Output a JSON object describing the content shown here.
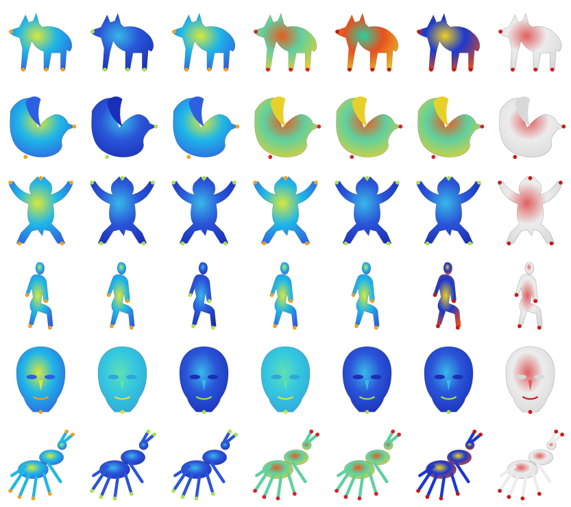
{
  "grid": {
    "rows": [
      {
        "shape": "wolf",
        "colormaps": [
          "jet-mixed-cyan",
          "jet-mostly-blue",
          "jet-mixed-cyan",
          "jet-yellow-red",
          "jet-red-heavy",
          "jet-blue-red-extremes",
          "red-on-white"
        ]
      },
      {
        "shape": "duck",
        "colormaps": [
          "jet-mixed-cyan",
          "jet-mostly-blue",
          "jet-mixed-cyan",
          "jet-yellow-red",
          "jet-yellow-red",
          "jet-yellow-red",
          "red-on-white"
        ]
      },
      {
        "shape": "bear",
        "colormaps": [
          "jet-mixed-cyan",
          "jet-mostly-blue",
          "jet-mostly-blue",
          "jet-mixed-cyan",
          "jet-mostly-blue",
          "jet-mostly-blue",
          "red-on-white"
        ]
      },
      {
        "shape": "seated-figure",
        "colormaps": [
          "jet-mixed-cyan",
          "jet-mixed-cyan",
          "jet-mostly-blue",
          "jet-mixed-cyan",
          "jet-mixed-cyan",
          "jet-blue-red-extremes",
          "red-on-white"
        ]
      },
      {
        "shape": "head",
        "colormaps": [
          "jet-mixed-cyan",
          "jet-cyan",
          "jet-mostly-blue",
          "jet-cyan",
          "jet-mostly-blue",
          "jet-mostly-blue",
          "red-on-white"
        ]
      },
      {
        "shape": "ant",
        "colormaps": [
          "jet-mixed-cyan",
          "jet-mostly-blue",
          "jet-mostly-blue",
          "jet-yellow-red",
          "jet-yellow-red",
          "jet-blue-red-extremes",
          "red-on-white"
        ]
      }
    ],
    "palettes": {
      "jet-mixed-cyan": {
        "base": "#1fb6e8",
        "patch1": "#2e5fe0",
        "patch2": "#d8e83a",
        "accent": "#f0a020"
      },
      "jet-mostly-blue": {
        "base": "#2a55d8",
        "patch1": "#1a2fb8",
        "patch2": "#38b8e8",
        "accent": "#a8e050"
      },
      "jet-cyan": {
        "base": "#35c8e0",
        "patch1": "#2fa6d8",
        "patch2": "#5fe0b0",
        "accent": "#e0e040"
      },
      "jet-yellow-red": {
        "base": "#5fd0a0",
        "patch1": "#e8d02a",
        "patch2": "#e85a20",
        "accent": "#d8202a"
      },
      "jet-red-heavy": {
        "base": "#e85020",
        "patch1": "#e8c020",
        "patch2": "#2ad0a0",
        "accent": "#c01818"
      },
      "jet-blue-red-extremes": {
        "base": "#1a38d0",
        "patch1": "#e84a1a",
        "patch2": "#f0d020",
        "accent": "#c81810"
      },
      "red-on-white": {
        "base": "#ececec",
        "patch1": "#d8d8d8",
        "patch2": "#e06060",
        "accent": "#d01818"
      }
    }
  }
}
